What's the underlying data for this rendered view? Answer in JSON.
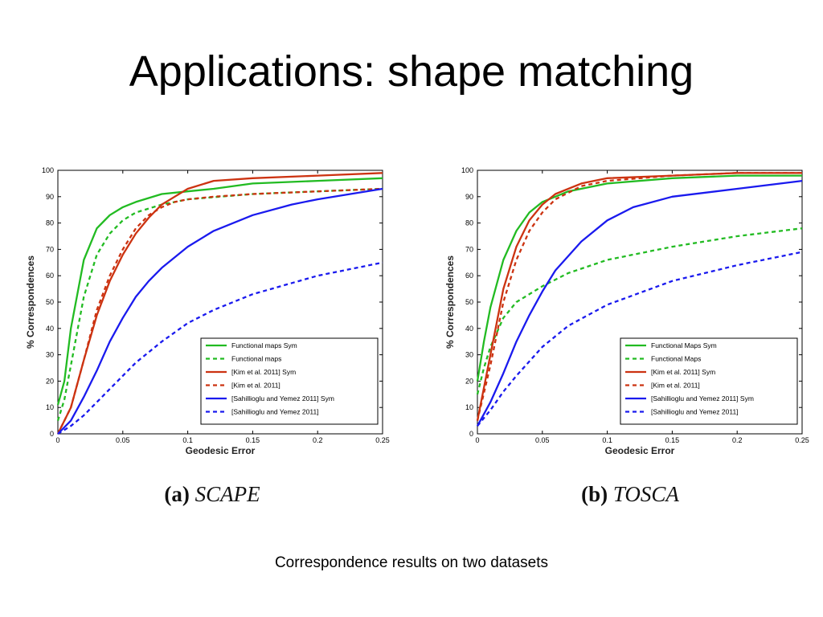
{
  "slide": {
    "title": "Applications: shape matching",
    "caption": "Correspondence results on two datasets"
  },
  "colors": {
    "green": "#22bb22",
    "red": "#cc3311",
    "blue": "#1a1aee"
  },
  "chart_data": [
    {
      "type": "line",
      "caption_prefix": "(a)",
      "caption_name": "SCAPE",
      "xlabel": "Geodesic Error",
      "ylabel": "% Correspondences",
      "xlim": [
        0,
        0.25
      ],
      "ylim": [
        0,
        100
      ],
      "xticks": [
        "0",
        "0.05",
        "0.1",
        "0.15",
        "0.2",
        "0.25"
      ],
      "yticks": [
        "0",
        "10",
        "20",
        "30",
        "40",
        "50",
        "60",
        "70",
        "80",
        "90",
        "100"
      ],
      "legend_position": "bottom-right",
      "series": [
        {
          "name": "Functional maps Sym",
          "color": "green",
          "dashed": false,
          "x": [
            0,
            0.005,
            0.01,
            0.02,
            0.03,
            0.04,
            0.05,
            0.06,
            0.08,
            0.1,
            0.12,
            0.15,
            0.2,
            0.25
          ],
          "y": [
            11,
            20,
            40,
            66,
            78,
            83,
            86,
            88,
            91,
            92,
            93,
            95,
            96,
            97
          ]
        },
        {
          "name": "Functional maps",
          "color": "green",
          "dashed": true,
          "x": [
            0,
            0.005,
            0.01,
            0.02,
            0.03,
            0.04,
            0.05,
            0.06,
            0.08,
            0.1,
            0.15,
            0.2,
            0.25
          ],
          "y": [
            5,
            13,
            26,
            52,
            68,
            76,
            81,
            84,
            87,
            89,
            91,
            92,
            93
          ]
        },
        {
          "name": "[Kim et al. 2011] Sym",
          "color": "red",
          "dashed": false,
          "x": [
            0,
            0.01,
            0.02,
            0.03,
            0.04,
            0.05,
            0.06,
            0.07,
            0.08,
            0.09,
            0.1,
            0.12,
            0.15,
            0.2,
            0.25
          ],
          "y": [
            0,
            10,
            28,
            45,
            58,
            68,
            76,
            82,
            87,
            90,
            93,
            96,
            97,
            98,
            99
          ]
        },
        {
          "name": "[Kim et al. 2011]",
          "color": "red",
          "dashed": true,
          "x": [
            0,
            0.01,
            0.02,
            0.03,
            0.04,
            0.05,
            0.06,
            0.07,
            0.08,
            0.09,
            0.1,
            0.12,
            0.15,
            0.2,
            0.25
          ],
          "y": [
            0,
            10,
            28,
            47,
            60,
            70,
            78,
            83,
            86,
            88,
            89,
            90,
            91,
            92,
            93
          ]
        },
        {
          "name": "[Sahillioglu and Yemez 2011] Sym",
          "color": "blue",
          "dashed": false,
          "x": [
            0,
            0.01,
            0.02,
            0.03,
            0.04,
            0.05,
            0.06,
            0.07,
            0.08,
            0.1,
            0.12,
            0.15,
            0.18,
            0.2,
            0.25
          ],
          "y": [
            0,
            5,
            14,
            24,
            35,
            44,
            52,
            58,
            63,
            71,
            77,
            83,
            87,
            89,
            93
          ]
        },
        {
          "name": "[Sahillioglu and Yemez 2011]",
          "color": "blue",
          "dashed": true,
          "x": [
            0,
            0.01,
            0.02,
            0.03,
            0.04,
            0.05,
            0.06,
            0.08,
            0.1,
            0.12,
            0.15,
            0.2,
            0.25
          ],
          "y": [
            0,
            3,
            7,
            12,
            17,
            22,
            27,
            35,
            42,
            47,
            53,
            60,
            65
          ]
        }
      ]
    },
    {
      "type": "line",
      "caption_prefix": "(b)",
      "caption_name": "TOSCA",
      "xlabel": "Geodesic Error",
      "ylabel": "% Correspondences",
      "xlim": [
        0,
        0.25
      ],
      "ylim": [
        0,
        100
      ],
      "xticks": [
        "0",
        "0.05",
        "0.1",
        "0.15",
        "0.2",
        "0.25"
      ],
      "yticks": [
        "0",
        "10",
        "20",
        "30",
        "40",
        "50",
        "60",
        "70",
        "80",
        "90",
        "100"
      ],
      "legend_position": "bottom-right",
      "series": [
        {
          "name": "Functional Maps Sym",
          "color": "green",
          "dashed": false,
          "x": [
            0,
            0.005,
            0.01,
            0.02,
            0.03,
            0.04,
            0.05,
            0.07,
            0.1,
            0.15,
            0.2,
            0.25
          ],
          "y": [
            20,
            35,
            48,
            66,
            77,
            84,
            88,
            92,
            95,
            97,
            98,
            98
          ]
        },
        {
          "name": "Functional Maps",
          "color": "green",
          "dashed": true,
          "x": [
            0,
            0.005,
            0.01,
            0.02,
            0.03,
            0.05,
            0.07,
            0.1,
            0.15,
            0.2,
            0.25
          ],
          "y": [
            15,
            25,
            33,
            44,
            50,
            56,
            61,
            66,
            71,
            75,
            78
          ]
        },
        {
          "name": "[Kim et al. 2011] Sym",
          "color": "red",
          "dashed": false,
          "x": [
            0,
            0.01,
            0.02,
            0.03,
            0.04,
            0.05,
            0.06,
            0.08,
            0.1,
            0.15,
            0.2,
            0.25
          ],
          "y": [
            5,
            30,
            55,
            71,
            81,
            87,
            91,
            95,
            97,
            98,
            99,
            99
          ]
        },
        {
          "name": "[Kim et al. 2011]",
          "color": "red",
          "dashed": true,
          "x": [
            0,
            0.01,
            0.02,
            0.03,
            0.04,
            0.05,
            0.06,
            0.08,
            0.1,
            0.15,
            0.2,
            0.25
          ],
          "y": [
            5,
            26,
            50,
            66,
            77,
            84,
            89,
            94,
            96,
            98,
            99,
            99
          ]
        },
        {
          "name": "[Sahillioglu and Yemez 2011] Sym",
          "color": "blue",
          "dashed": false,
          "x": [
            0,
            0.01,
            0.02,
            0.03,
            0.04,
            0.05,
            0.06,
            0.08,
            0.1,
            0.12,
            0.15,
            0.2,
            0.25
          ],
          "y": [
            3,
            12,
            23,
            35,
            45,
            54,
            62,
            73,
            81,
            86,
            90,
            93,
            96
          ]
        },
        {
          "name": "[Sahillioglu and Yemez 2011]",
          "color": "blue",
          "dashed": true,
          "x": [
            0,
            0.01,
            0.02,
            0.03,
            0.05,
            0.07,
            0.1,
            0.15,
            0.2,
            0.25
          ],
          "y": [
            3,
            9,
            16,
            22,
            33,
            41,
            49,
            58,
            64,
            69
          ]
        }
      ]
    }
  ]
}
